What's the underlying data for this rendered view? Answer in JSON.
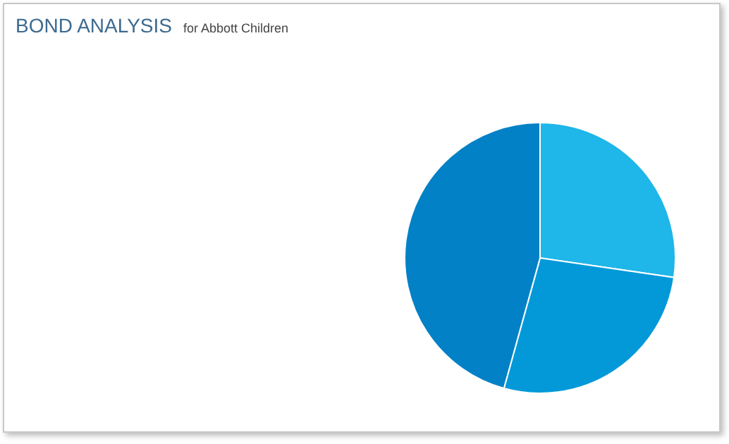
{
  "chart_data": {
    "type": "pie",
    "title": "BOND ANALYSIS",
    "subtitle": "for Abbott Children",
    "categories": [
      null,
      null,
      null
    ],
    "values": [
      27.3,
      27.0,
      45.7
    ],
    "colors": [
      "#1fb6e9",
      "#0399d9",
      "#0381c6"
    ]
  }
}
